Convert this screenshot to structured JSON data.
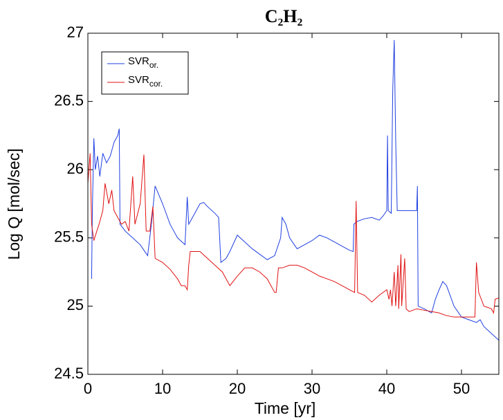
{
  "chart_data": {
    "type": "line",
    "title": "C₂H₂",
    "xlabel": "Time [yr]",
    "ylabel": "Log Q [mol/sec]",
    "xlim": [
      0,
      55
    ],
    "ylim": [
      24.5,
      27
    ],
    "xticks": [
      0,
      10,
      20,
      30,
      40,
      50
    ],
    "yticks": [
      24.5,
      25,
      25.5,
      26,
      26.5,
      27
    ],
    "grid": false,
    "legend": "upper left",
    "series": [
      {
        "name": "SVR",
        "name_subscript": "or.",
        "color": "#1f3fe0",
        "x": [
          0.5,
          0.6,
          0.8,
          1,
          1.3,
          1.6,
          2,
          2.5,
          3,
          3.5,
          4,
          4.2,
          4.3,
          5,
          6,
          7,
          8,
          8.5,
          9,
          10,
          11,
          12,
          13,
          13.3,
          13.5,
          14,
          15,
          15.5,
          16,
          17,
          17.5,
          17.8,
          18.5,
          19,
          20,
          21,
          22,
          23,
          24,
          25,
          25.8,
          26,
          26.5,
          27,
          28,
          29,
          30,
          31,
          32,
          33,
          34,
          35,
          35.5,
          35.6,
          36,
          37,
          38,
          39,
          39.5,
          40,
          40.1,
          40.2,
          40.6,
          40.8,
          41,
          41.2,
          41.4,
          42,
          43,
          44,
          44.1,
          44.2,
          45,
          46,
          46.5,
          47,
          47.5,
          48,
          49,
          50,
          51,
          52,
          52.5,
          53,
          54,
          55
        ],
        "values": [
          25.2,
          25.7,
          26.23,
          26.0,
          26.1,
          25.95,
          26.12,
          26.05,
          26.1,
          26.2,
          26.25,
          26.3,
          25.6,
          25.55,
          25.5,
          25.45,
          25.37,
          25.6,
          25.88,
          25.75,
          25.6,
          25.5,
          25.45,
          25.8,
          25.6,
          25.65,
          25.75,
          25.76,
          25.73,
          25.68,
          25.65,
          25.32,
          25.35,
          25.4,
          25.52,
          25.47,
          25.42,
          25.38,
          25.34,
          25.37,
          25.5,
          25.65,
          25.6,
          25.5,
          25.42,
          25.45,
          25.48,
          25.52,
          25.5,
          25.47,
          25.44,
          25.41,
          25.4,
          25.6,
          25.62,
          25.64,
          25.65,
          25.63,
          25.66,
          25.7,
          26.25,
          25.7,
          25.68,
          26.58,
          26.95,
          26.2,
          25.7,
          25.7,
          25.7,
          25.7,
          25.88,
          25.0,
          24.98,
          24.95,
          25.05,
          25.12,
          25.18,
          25.15,
          25.0,
          24.92,
          24.9,
          24.88,
          24.9,
          24.85,
          24.8,
          24.75
        ]
      },
      {
        "name": "SVR",
        "name_subscript": "cor.",
        "color": "#e01010",
        "x": [
          0,
          0.3,
          0.5,
          0.8,
          1.2,
          1.5,
          2,
          2.3,
          2.8,
          3.2,
          3.5,
          4,
          4.5,
          5,
          5.5,
          6,
          6.3,
          7,
          7.5,
          7.8,
          8.3,
          8.7,
          9,
          10,
          11,
          12,
          12.5,
          13,
          13.3,
          13.5,
          13.7,
          15,
          16,
          17,
          18,
          18.5,
          19,
          20,
          21,
          22,
          23,
          24,
          25,
          25.2,
          25.5,
          26,
          27,
          28,
          29,
          30,
          31,
          32,
          33,
          34,
          35,
          35.7,
          35.9,
          36.1,
          37,
          38,
          39,
          40,
          40.3,
          40.5,
          40.7,
          41,
          41.2,
          41.5,
          41.6,
          41.9,
          42,
          42.4,
          42.6,
          43,
          44,
          45,
          46,
          47,
          48,
          49,
          50,
          51,
          51.8,
          52,
          52.3,
          53,
          54,
          54.3,
          54.5,
          55
        ],
        "values": [
          25.9,
          26.12,
          25.6,
          25.48,
          25.55,
          25.6,
          25.7,
          25.9,
          25.75,
          25.85,
          25.7,
          25.65,
          25.6,
          25.62,
          25.55,
          25.95,
          25.6,
          25.75,
          26.11,
          25.55,
          25.55,
          25.73,
          25.35,
          25.32,
          25.27,
          25.2,
          25.15,
          25.15,
          25.12,
          25.3,
          25.4,
          25.4,
          25.35,
          25.3,
          25.25,
          25.2,
          25.15,
          25.22,
          25.28,
          25.28,
          25.25,
          25.2,
          25.1,
          25.1,
          25.28,
          25.28,
          25.3,
          25.3,
          25.28,
          25.25,
          25.22,
          25.2,
          25.18,
          25.15,
          25.12,
          25.1,
          25.77,
          25.1,
          25.08,
          25.03,
          25.08,
          25.12,
          25.05,
          25.12,
          25.0,
          25.25,
          25.0,
          25.3,
          24.98,
          25.38,
          25.0,
          25.35,
          24.98,
          24.96,
          24.98,
          24.97,
          24.96,
          24.95,
          24.93,
          24.92,
          24.92,
          24.92,
          24.92,
          25.32,
          25.1,
          25.0,
          24.98,
          24.95,
          25.05,
          25.06
        ]
      }
    ]
  }
}
